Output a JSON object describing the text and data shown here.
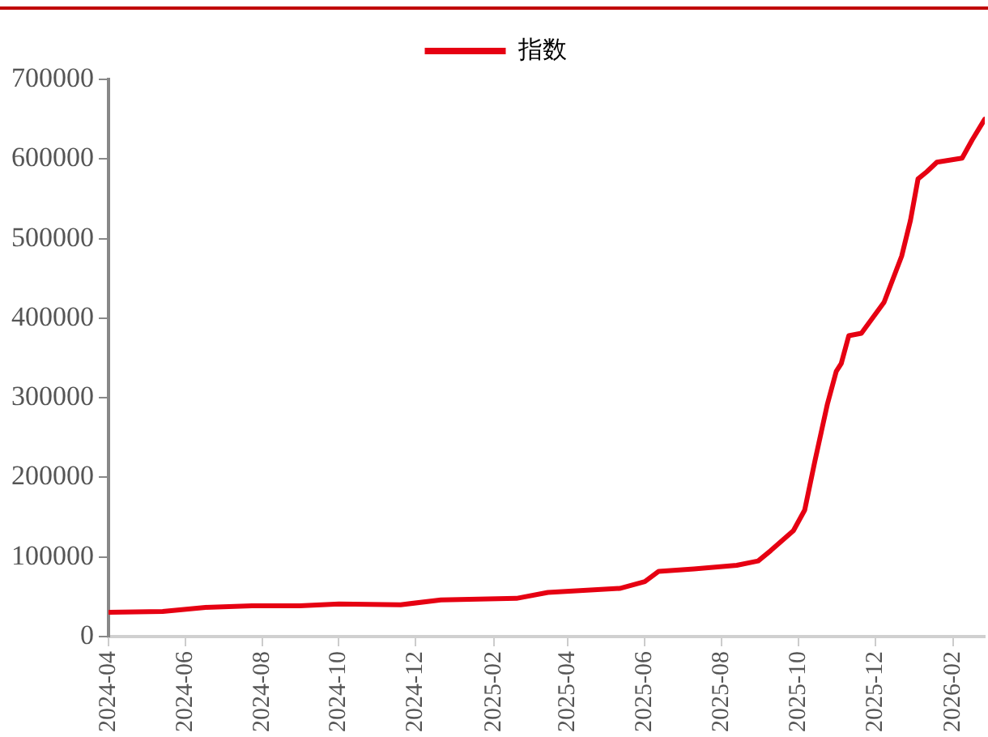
{
  "chart_data": {
    "type": "line",
    "legend": "top",
    "grid": false,
    "marker": "none",
    "line_style": "solid",
    "xlim": [
      "2024-04-01",
      "2026-02-26"
    ],
    "xticks": [
      "2024-04",
      "2024-06",
      "2024-08",
      "2024-10",
      "2024-12",
      "2025-02",
      "2025-04",
      "2025-06",
      "2025-08",
      "2025-10",
      "2025-12",
      "2026-02"
    ],
    "ylim": [
      0,
      700000
    ],
    "yticks": [
      0,
      100000,
      200000,
      300000,
      400000,
      500000,
      600000,
      700000
    ],
    "series": [
      {
        "name": "指数",
        "color": "#e60012",
        "x": [
          "2024-04-02",
          "2024-05-14",
          "2024-06-17",
          "2024-07-24",
          "2024-08-31",
          "2024-10-01",
          "2024-11-19",
          "2024-12-21",
          "2025-02-19",
          "2025-03-16",
          "2025-05-12",
          "2025-06-01",
          "2025-06-12",
          "2025-07-10",
          "2025-08-13",
          "2025-08-30",
          "2025-09-09",
          "2025-09-27",
          "2025-10-06",
          "2025-10-14",
          "2025-10-24",
          "2025-10-31",
          "2025-11-04",
          "2025-11-10",
          "2025-11-20",
          "2025-12-08",
          "2025-12-22",
          "2025-12-29",
          "2026-01-04",
          "2026-01-11",
          "2026-01-19",
          "2026-02-08",
          "2026-02-16",
          "2026-02-26"
        ],
        "values": [
          30500,
          31500,
          36700,
          38700,
          38700,
          41000,
          40000,
          46000,
          48000,
          55500,
          60500,
          69000,
          82000,
          85000,
          89500,
          95000,
          108000,
          133000,
          159000,
          220000,
          292000,
          333000,
          343000,
          378000,
          381000,
          420000,
          478000,
          523000,
          575000,
          584000,
          596000,
          601000,
          624000,
          650000
        ]
      }
    ]
  }
}
